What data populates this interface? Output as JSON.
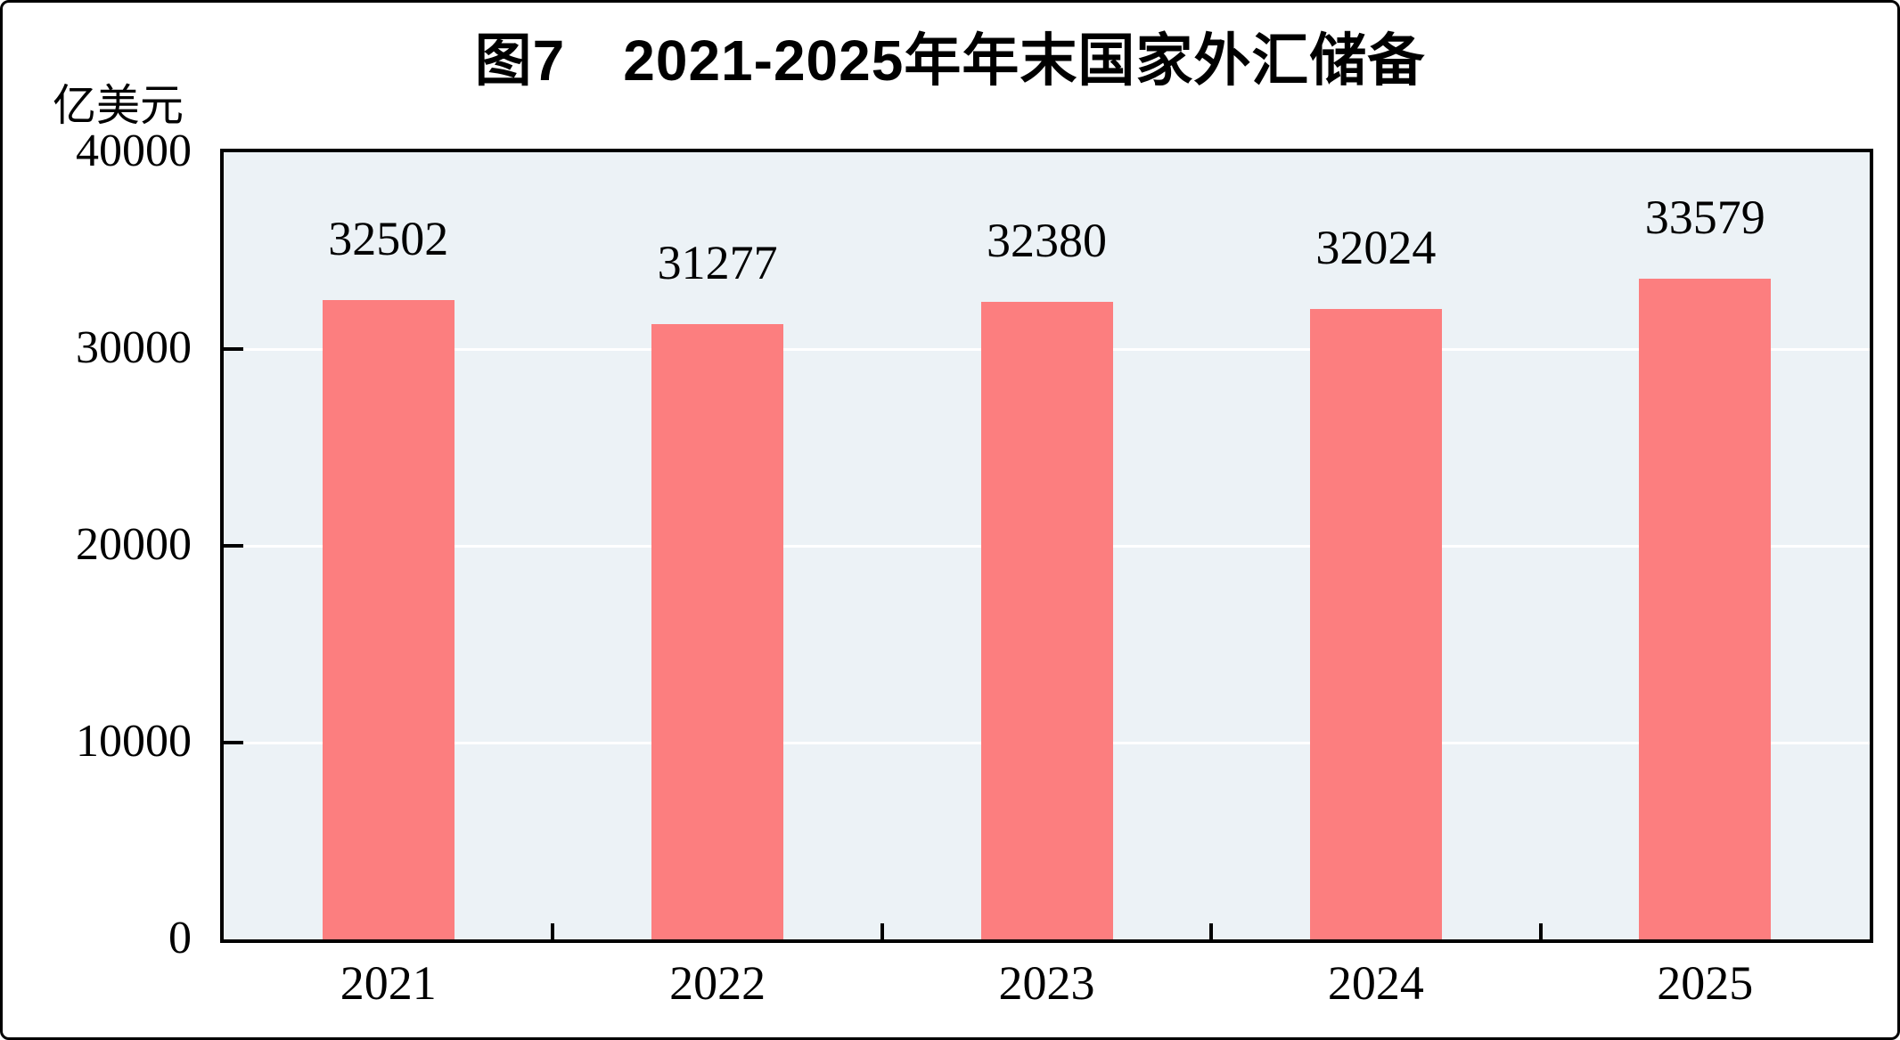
{
  "chart_data": {
    "type": "bar",
    "title": "图7　2021-2025年年末国家外汇储备",
    "unit_label": "亿美元",
    "categories": [
      "2021",
      "2022",
      "2023",
      "2024",
      "2025"
    ],
    "values": [
      32502,
      31277,
      32380,
      32024,
      33579
    ],
    "series": [
      {
        "name": "年末国家外汇储备",
        "values": [
          32502,
          31277,
          32380,
          32024,
          33579
        ]
      }
    ],
    "xlabel": "",
    "ylabel": "亿美元",
    "ylim": [
      0,
      40000
    ],
    "y_ticks": [
      0,
      10000,
      20000,
      30000,
      40000
    ],
    "grid": "horizontal",
    "legend": "none",
    "colors": {
      "bar": "#FC7E7F",
      "plot_background": "#ECF2F6",
      "gridline": "#FFFFFF",
      "axis": "#000000",
      "text": "#000000"
    }
  }
}
